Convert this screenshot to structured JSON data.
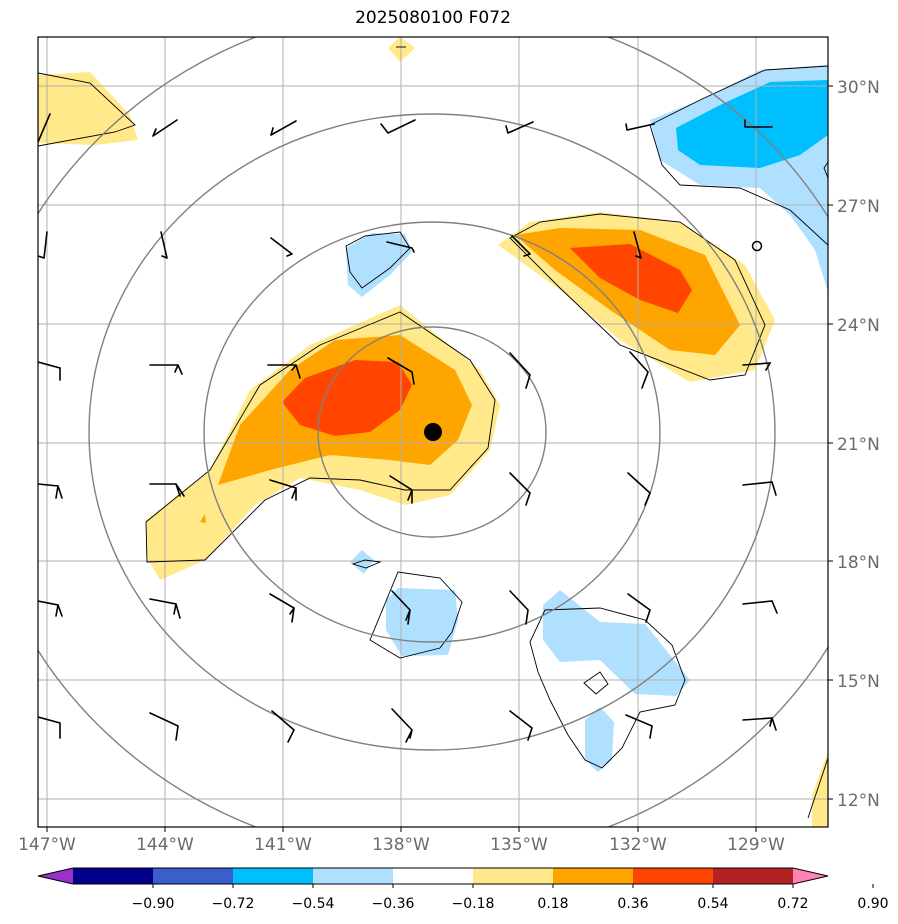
{
  "title": "2025080100 F072",
  "map": {
    "lat_labels": [
      "30°N",
      "27°N",
      "24°N",
      "21°N",
      "18°N",
      "15°N",
      "12°N"
    ],
    "lon_labels": [
      "147°W",
      "144°W",
      "141°W",
      "138°W",
      "135°W",
      "132°W",
      "129°W"
    ],
    "center_marker": "storm-center",
    "colors": {
      "frame": "#000000",
      "grid": "#b0b0b0",
      "range_rings": "#808080",
      "barbs": "#000000"
    }
  },
  "colorbar": {
    "labels": [
      "−0.90",
      "−0.72",
      "−0.54",
      "−0.36",
      "−0.18",
      "0.18",
      "0.36",
      "0.54",
      "0.72",
      "0.90"
    ],
    "colors": [
      "#9932cc",
      "#00008b",
      "#3a5fcd",
      "#00bfff",
      "#b0e0ff",
      "#ffffff",
      "#ffe98a",
      "#ffa500",
      "#ff4500",
      "#b22222",
      "#ff82b4"
    ]
  }
}
